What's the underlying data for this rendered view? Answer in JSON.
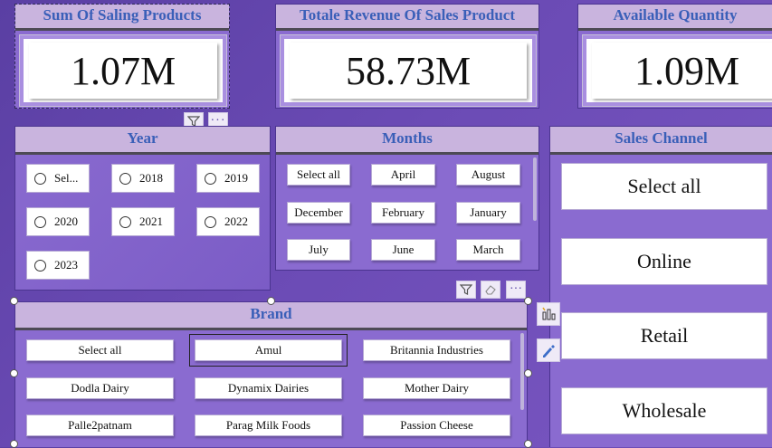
{
  "kpis": [
    {
      "title": "Sum Of Saling Products",
      "value": "1.07M"
    },
    {
      "title": "Totale Revenue Of Sales Product",
      "value": "58.73M"
    },
    {
      "title": "Available Quantity",
      "value": "1.09M"
    }
  ],
  "year_slicer": {
    "title": "Year",
    "options": [
      "Sel...",
      "2018",
      "2019",
      "2020",
      "2021",
      "2022",
      "2023"
    ]
  },
  "months_slicer": {
    "title": "Months",
    "options": [
      "Select all",
      "April",
      "August",
      "December",
      "February",
      "January",
      "July",
      "June",
      "March"
    ]
  },
  "sales_channel_slicer": {
    "title": "Sales Channel",
    "options": [
      "Select all",
      "Online",
      "Retail",
      "Wholesale"
    ]
  },
  "brand_slicer": {
    "title": "Brand",
    "selected": "Amul",
    "options": [
      "Select all",
      "Amul",
      "Britannia Industries",
      "Dodla Dairy",
      "Dynamix Dairies",
      "Mother Dairy",
      "Palle2patnam",
      "Parag Milk Foods",
      "Passion Cheese"
    ]
  },
  "icons": {
    "filter": "filter-icon",
    "more": "more-options-icon",
    "eraser": "clear-selections-icon",
    "visual_type": "build-visual-icon",
    "format": "format-visual-icon"
  }
}
